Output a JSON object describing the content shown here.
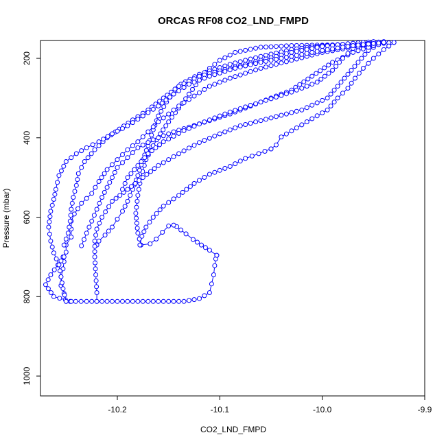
{
  "chart_data": {
    "type": "line",
    "title": "ORCAS RF08 CO2_LND_FMPD",
    "xlabel": "CO2_LND_FMPD",
    "ylabel": "Pressure (mbar)",
    "xlim": [
      -10.275,
      -9.9
    ],
    "ylim": [
      1050,
      155
    ],
    "y_reversed": true,
    "x_ticks": [
      -10.2,
      -10.1,
      -10.0,
      -9.9
    ],
    "x_tick_labels": [
      "-10.2",
      "-10.1",
      "-10.0",
      "-9.9"
    ],
    "y_ticks": [
      200,
      400,
      600,
      800,
      1000
    ],
    "y_tick_labels": [
      "200",
      "400",
      "600",
      "800",
      "1000"
    ],
    "grid": false,
    "legend": "none",
    "series": [
      {
        "color": "#0000ff",
        "marker": "open-circle",
        "segments": [
          [
            [
              -10.246,
              812
            ],
            [
              -10.23,
              812
            ],
            [
              -10.21,
              812
            ],
            [
              -10.19,
              812
            ],
            [
              -10.17,
              812
            ],
            [
              -10.15,
              812
            ],
            [
              -10.135,
              812
            ],
            [
              -10.12,
              805
            ],
            [
              -10.11,
              790
            ],
            [
              -10.108,
              768
            ],
            [
              -10.106,
              745
            ],
            [
              -10.105,
              722
            ],
            [
              -10.104,
              705
            ],
            [
              -10.103,
              696
            ]
          ],
          [
            [
              -10.103,
              696
            ],
            [
              -10.11,
              683
            ],
            [
              -10.118,
              670
            ],
            [
              -10.126,
              656
            ],
            [
              -10.133,
              642
            ],
            [
              -10.138,
              632
            ],
            [
              -10.142,
              624
            ],
            [
              -10.145,
              620
            ],
            [
              -10.15,
              622
            ],
            [
              -10.156,
              638
            ],
            [
              -10.162,
              655
            ],
            [
              -10.168,
              667
            ],
            [
              -10.177,
              670
            ]
          ],
          [
            [
              -10.177,
              670
            ],
            [
              -10.18,
              640
            ],
            [
              -10.182,
              590
            ],
            [
              -10.18,
              545
            ],
            [
              -10.177,
              500
            ],
            [
              -10.172,
              455
            ],
            [
              -10.165,
              420
            ],
            [
              -10.158,
              390
            ],
            [
              -10.15,
              360
            ],
            [
              -10.14,
              325
            ],
            [
              -10.13,
              290
            ],
            [
              -10.12,
              255
            ],
            [
              -10.11,
              225
            ],
            [
              -10.1,
              205
            ],
            [
              -10.085,
              185
            ],
            [
              -10.06,
              172
            ],
            [
              -10.03,
              168
            ],
            [
              -9.99,
              166
            ],
            [
              -9.95,
              164
            ],
            [
              -9.93,
              160
            ]
          ],
          [
            [
              -9.93,
              160
            ],
            [
              -9.94,
              178
            ],
            [
              -9.95,
              200
            ],
            [
              -9.96,
              225
            ],
            [
              -9.968,
              250
            ],
            [
              -9.975,
              275
            ],
            [
              -9.985,
              300
            ],
            [
              -9.995,
              330
            ],
            [
              -10.01,
              352
            ],
            [
              -10.025,
              375
            ],
            [
              -10.04,
              398
            ],
            [
              -10.045,
              418
            ],
            [
              -10.05,
              428
            ]
          ],
          [
            [
              -10.05,
              428
            ],
            [
              -10.062,
              440
            ],
            [
              -10.075,
              452
            ],
            [
              -10.09,
              472
            ],
            [
              -10.11,
              492
            ],
            [
              -10.125,
              515
            ],
            [
              -10.14,
              545
            ],
            [
              -10.155,
              572
            ],
            [
              -10.165,
              600
            ],
            [
              -10.172,
              625
            ],
            [
              -10.176,
              648
            ],
            [
              -10.178,
              670
            ]
          ],
          [
            [
              -10.22,
              670
            ],
            [
              -10.218,
              660
            ],
            [
              -10.212,
              645
            ],
            [
              -10.205,
              625
            ],
            [
              -10.2,
              605
            ],
            [
              -10.195,
              585
            ],
            [
              -10.19,
              560
            ],
            [
              -10.185,
              530
            ],
            [
              -10.18,
              495
            ],
            [
              -10.175,
              455
            ],
            [
              -10.17,
              420
            ],
            [
              -10.165,
              380
            ],
            [
              -10.16,
              345
            ],
            [
              -10.152,
              310
            ],
            [
              -10.145,
              285
            ],
            [
              -10.138,
              265
            ],
            [
              -10.12,
              240
            ],
            [
              -10.09,
              215
            ],
            [
              -10.06,
              195
            ],
            [
              -10.03,
              178
            ],
            [
              -10.0,
              168
            ],
            [
              -9.97,
              163
            ],
            [
              -9.94,
              158
            ]
          ],
          [
            [
              -9.94,
              158
            ],
            [
              -9.955,
              180
            ],
            [
              -9.965,
              210
            ],
            [
              -9.975,
              240
            ],
            [
              -9.985,
              270
            ],
            [
              -9.995,
              300
            ],
            [
              -10.02,
              330
            ],
            [
              -10.05,
              350
            ],
            [
              -10.08,
              370
            ],
            [
              -10.1,
              390
            ],
            [
              -10.12,
              412
            ],
            [
              -10.14,
              440
            ],
            [
              -10.16,
              470
            ],
            [
              -10.175,
              500
            ],
            [
              -10.19,
              530
            ],
            [
              -10.205,
              560
            ],
            [
              -10.215,
              600
            ],
            [
              -10.22,
              630
            ],
            [
              -10.222,
              660
            ],
            [
              -10.222,
              700
            ],
            [
              -10.221,
              745
            ],
            [
              -10.22,
              790
            ],
            [
              -10.22,
              812
            ]
          ],
          [
            [
              -10.25,
              812
            ],
            [
              -10.252,
              792
            ],
            [
              -10.255,
              772
            ],
            [
              -10.255,
              750
            ],
            [
              -10.253,
              730
            ],
            [
              -10.252,
              712
            ],
            [
              -10.253,
              700
            ],
            [
              -10.25,
              688
            ],
            [
              -10.25,
              670
            ],
            [
              -10.245,
              650
            ],
            [
              -10.245,
              630
            ],
            [
              -10.245,
              610
            ],
            [
              -10.242,
              592
            ],
            [
              -10.235,
              565
            ],
            [
              -10.225,
              540
            ],
            [
              -10.218,
              510
            ],
            [
              -10.21,
              480
            ],
            [
              -10.2,
              455
            ],
            [
              -10.19,
              430
            ],
            [
              -10.18,
              410
            ],
            [
              -10.17,
              385
            ],
            [
              -10.16,
              360
            ],
            [
              -10.15,
              340
            ],
            [
              -10.14,
              320
            ],
            [
              -10.125,
              295
            ],
            [
              -10.11,
              270
            ],
            [
              -10.09,
              250
            ],
            [
              -10.06,
              225
            ],
            [
              -10.03,
              205
            ],
            [
              -10.0,
              185
            ],
            [
              -9.97,
              172
            ],
            [
              -9.95,
              168
            ]
          ],
          [
            [
              -9.95,
              168
            ],
            [
              -9.97,
              185
            ],
            [
              -9.99,
              210
            ],
            [
              -10.01,
              245
            ],
            [
              -10.03,
              280
            ],
            [
              -10.06,
              310
            ],
            [
              -10.09,
              340
            ],
            [
              -10.12,
              365
            ],
            [
              -10.145,
              385
            ],
            [
              -10.165,
              405
            ],
            [
              -10.18,
              425
            ],
            [
              -10.19,
              450
            ],
            [
              -10.2,
              475
            ],
            [
              -10.205,
              500
            ],
            [
              -10.21,
              525
            ],
            [
              -10.215,
              550
            ],
            [
              -10.22,
              580
            ],
            [
              -10.225,
              610
            ],
            [
              -10.23,
              640
            ],
            [
              -10.235,
              672
            ]
          ],
          [
            [
              -10.245,
              812
            ],
            [
              -10.262,
              800
            ],
            [
              -10.27,
              770
            ],
            [
              -10.265,
              745
            ],
            [
              -10.258,
              720
            ],
            [
              -10.252,
              700
            ]
          ],
          [
            [
              -10.252,
              670
            ],
            [
              -10.248,
              640
            ],
            [
              -10.246,
              610
            ],
            [
              -10.245,
              580
            ],
            [
              -10.243,
              550
            ],
            [
              -10.24,
              520
            ],
            [
              -10.238,
              490
            ],
            [
              -10.232,
              460
            ],
            [
              -10.222,
              430
            ],
            [
              -10.21,
              400
            ],
            [
              -10.198,
              378
            ],
            [
              -10.185,
              355
            ],
            [
              -10.17,
              330
            ],
            [
              -10.155,
              300
            ],
            [
              -10.14,
              270
            ],
            [
              -10.12,
              245
            ],
            [
              -10.09,
              225
            ],
            [
              -10.06,
              205
            ],
            [
              -10.03,
              185
            ],
            [
              -10.0,
              170
            ],
            [
              -9.97,
              162
            ],
            [
              -9.95,
              158
            ]
          ],
          [
            [
              -9.95,
              158
            ],
            [
              -9.97,
              175
            ],
            [
              -9.98,
              200
            ],
            [
              -9.99,
              230
            ],
            [
              -10.005,
              260
            ],
            [
              -10.03,
              285
            ],
            [
              -10.06,
              310
            ],
            [
              -10.09,
              335
            ],
            [
              -10.115,
              360
            ],
            [
              -10.135,
              382
            ],
            [
              -10.155,
              410
            ],
            [
              -10.17,
              440
            ],
            [
              -10.18,
              470
            ],
            [
              -10.19,
              500
            ],
            [
              -10.195,
              530
            ]
          ],
          [
            [
              -10.25,
              812
            ],
            [
              -10.253,
              780
            ],
            [
              -10.255,
              750
            ],
            [
              -10.257,
              720
            ],
            [
              -10.262,
              690
            ],
            [
              -10.265,
              660
            ],
            [
              -10.267,
              625
            ],
            [
              -10.265,
              585
            ],
            [
              -10.262,
              555
            ],
            [
              -10.26,
              530
            ],
            [
              -10.257,
              495
            ],
            [
              -10.25,
              460
            ],
            [
              -10.24,
              440
            ],
            [
              -10.23,
              425
            ],
            [
              -10.218,
              410
            ],
            [
              -10.205,
              390
            ],
            [
              -10.19,
              370
            ],
            [
              -10.175,
              345
            ],
            [
              -10.16,
              320
            ],
            [
              -10.145,
              290
            ],
            [
              -10.13,
              265
            ],
            [
              -10.11,
              245
            ],
            [
              -10.085,
              225
            ],
            [
              -10.06,
              210
            ],
            [
              -10.03,
              195
            ],
            [
              -10.0,
              180
            ],
            [
              -9.97,
              168
            ],
            [
              -9.94,
              160
            ]
          ]
        ]
      }
    ]
  }
}
